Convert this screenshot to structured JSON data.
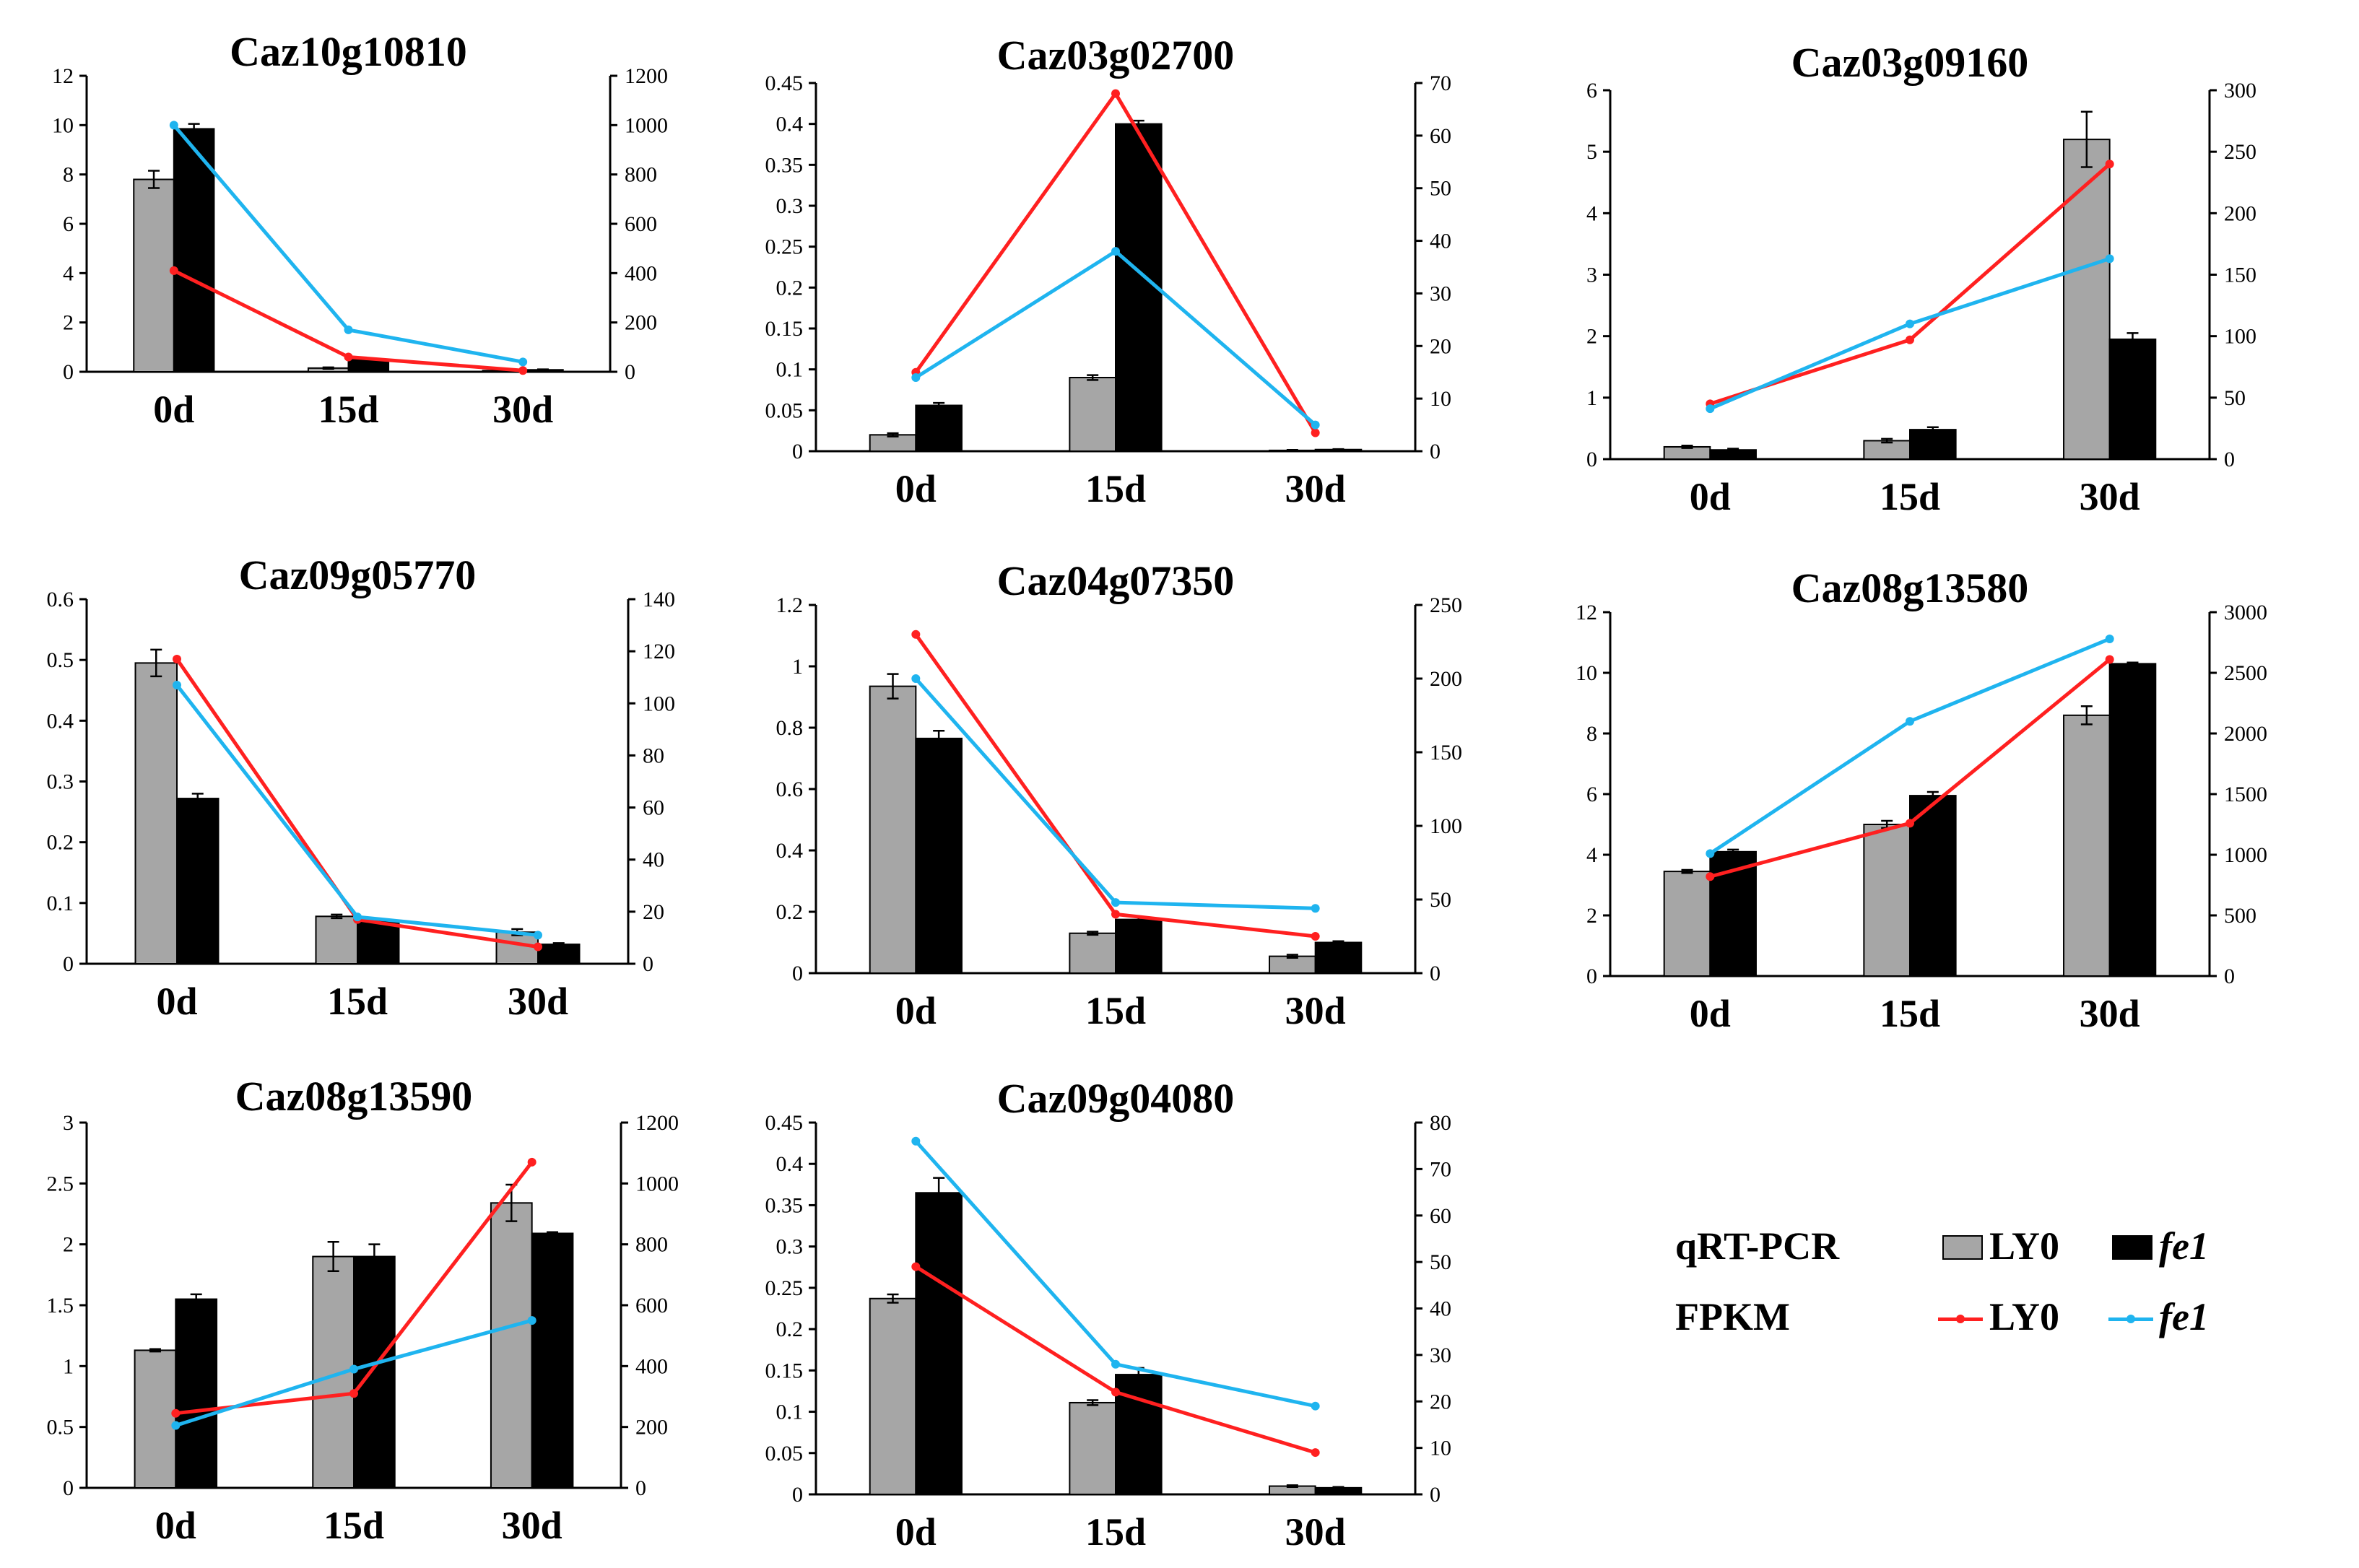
{
  "colors": {
    "ly0_bar": "#a6a6a6",
    "fe1_bar": "#000000",
    "ly0_line": "#ff2020",
    "fe1_line": "#1fb4ef"
  },
  "legend": {
    "qrt_label": "qRT-PCR",
    "fpkm_label": "FPKM",
    "ly0": "LY0",
    "fe1": "fe1"
  },
  "chart_data": [
    {
      "type": "bar",
      "title": "Caz10g10810",
      "categories": [
        "0d",
        "15d",
        "30d"
      ],
      "ylim": [
        0,
        12
      ],
      "yticks": [
        "0",
        "2",
        "4",
        "6",
        "8",
        "10",
        "12"
      ],
      "y2lim": [
        0,
        1200
      ],
      "y2ticks": [
        "0",
        "200",
        "400",
        "600",
        "800",
        "1000",
        "1200"
      ],
      "series": [
        {
          "name": "LY0",
          "kind": "bar",
          "values": [
            7.8,
            0.15,
            0.05
          ],
          "errors": [
            0.35,
            0.03,
            0.02
          ]
        },
        {
          "name": "fe1",
          "kind": "bar",
          "values": [
            9.85,
            0.5,
            0.08
          ],
          "errors": [
            0.2,
            0.05,
            0.02
          ]
        },
        {
          "name": "LY0",
          "kind": "line",
          "axis": "right",
          "values": [
            410,
            60,
            5
          ]
        },
        {
          "name": "fe1",
          "kind": "line",
          "axis": "right",
          "values": [
            1000,
            170,
            40
          ]
        }
      ]
    },
    {
      "type": "bar",
      "title": "Caz03g02700",
      "categories": [
        "0d",
        "15d",
        "30d"
      ],
      "ylim": [
        0,
        0.45
      ],
      "yticks": [
        "0",
        "0.05",
        "0.1",
        "0.15",
        "0.2",
        "0.25",
        "0.3",
        "0.35",
        "0.4",
        "0.45"
      ],
      "y2lim": [
        0,
        70
      ],
      "y2ticks": [
        "0",
        "10",
        "20",
        "30",
        "40",
        "50",
        "60",
        "70"
      ],
      "series": [
        {
          "name": "LY0",
          "kind": "bar",
          "values": [
            0.02,
            0.09,
            0.001
          ],
          "errors": [
            0.002,
            0.003,
            0.0005
          ]
        },
        {
          "name": "fe1",
          "kind": "bar",
          "values": [
            0.056,
            0.4,
            0.002
          ],
          "errors": [
            0.003,
            0.004,
            0.0005
          ]
        },
        {
          "name": "LY0",
          "kind": "line",
          "axis": "right",
          "values": [
            15,
            68,
            3.5
          ]
        },
        {
          "name": "fe1",
          "kind": "line",
          "axis": "right",
          "values": [
            14,
            38,
            5
          ]
        }
      ]
    },
    {
      "type": "bar",
      "title": "Caz03g09160",
      "categories": [
        "0d",
        "15d",
        "30d"
      ],
      "ylim": [
        0,
        6
      ],
      "yticks": [
        "0",
        "1",
        "2",
        "3",
        "4",
        "5",
        "6"
      ],
      "y2lim": [
        0,
        300
      ],
      "y2ticks": [
        "0",
        "50",
        "100",
        "150",
        "200",
        "250",
        "300"
      ],
      "series": [
        {
          "name": "LY0",
          "kind": "bar",
          "values": [
            0.2,
            0.3,
            5.2
          ],
          "errors": [
            0.02,
            0.03,
            0.45
          ]
        },
        {
          "name": "fe1",
          "kind": "bar",
          "values": [
            0.15,
            0.48,
            1.95
          ],
          "errors": [
            0.02,
            0.04,
            0.1
          ]
        },
        {
          "name": "LY0",
          "kind": "line",
          "axis": "right",
          "values": [
            45,
            97,
            240
          ]
        },
        {
          "name": "fe1",
          "kind": "line",
          "axis": "right",
          "values": [
            41,
            110,
            163
          ]
        }
      ]
    },
    {
      "type": "bar",
      "title": "Caz09g05770",
      "categories": [
        "0d",
        "15d",
        "30d"
      ],
      "ylim": [
        0,
        0.6
      ],
      "yticks": [
        "0",
        "0.1",
        "0.2",
        "0.3",
        "0.4",
        "0.5",
        "0.6"
      ],
      "y2lim": [
        0,
        140
      ],
      "y2ticks": [
        "0",
        "20",
        "40",
        "60",
        "80",
        "100",
        "120",
        "140"
      ],
      "series": [
        {
          "name": "LY0",
          "kind": "bar",
          "values": [
            0.495,
            0.078,
            0.052
          ],
          "errors": [
            0.022,
            0.003,
            0.005
          ]
        },
        {
          "name": "fe1",
          "kind": "bar",
          "values": [
            0.272,
            0.07,
            0.032
          ],
          "errors": [
            0.008,
            0.004,
            0.002
          ]
        },
        {
          "name": "LY0",
          "kind": "line",
          "axis": "right",
          "values": [
            117,
            17,
            6.5
          ]
        },
        {
          "name": "fe1",
          "kind": "line",
          "axis": "right",
          "values": [
            107,
            18,
            11
          ]
        }
      ]
    },
    {
      "type": "bar",
      "title": "Caz04g07350",
      "categories": [
        "0d",
        "15d",
        "30d"
      ],
      "ylim": [
        0,
        1.2
      ],
      "yticks": [
        "0",
        "0.2",
        "0.4",
        "0.6",
        "0.8",
        "1",
        "1.2"
      ],
      "y2lim": [
        0,
        250
      ],
      "y2ticks": [
        "0",
        "50",
        "100",
        "150",
        "200",
        "250"
      ],
      "series": [
        {
          "name": "LY0",
          "kind": "bar",
          "values": [
            0.935,
            0.13,
            0.055
          ],
          "errors": [
            0.04,
            0.005,
            0.005
          ]
        },
        {
          "name": "fe1",
          "kind": "bar",
          "values": [
            0.765,
            0.175,
            0.1
          ],
          "errors": [
            0.025,
            0.008,
            0.004
          ]
        },
        {
          "name": "LY0",
          "kind": "line",
          "axis": "right",
          "values": [
            230,
            40,
            25
          ]
        },
        {
          "name": "fe1",
          "kind": "line",
          "axis": "right",
          "values": [
            200,
            48,
            44
          ]
        }
      ]
    },
    {
      "type": "bar",
      "title": "Caz08g13580",
      "categories": [
        "0d",
        "15d",
        "30d"
      ],
      "ylim": [
        0,
        12
      ],
      "yticks": [
        "0",
        "2",
        "4",
        "6",
        "8",
        "10",
        "12"
      ],
      "y2lim": [
        0,
        3000
      ],
      "y2ticks": [
        "0",
        "500",
        "1000",
        "1500",
        "2000",
        "2500",
        "3000"
      ],
      "series": [
        {
          "name": "LY0",
          "kind": "bar",
          "values": [
            3.45,
            5.0,
            8.6
          ],
          "errors": [
            0.05,
            0.12,
            0.3
          ]
        },
        {
          "name": "fe1",
          "kind": "bar",
          "values": [
            4.1,
            5.95,
            10.3
          ],
          "errors": [
            0.07,
            0.12,
            0.04
          ]
        },
        {
          "name": "LY0",
          "kind": "line",
          "axis": "right",
          "values": [
            820,
            1260,
            2610
          ]
        },
        {
          "name": "fe1",
          "kind": "line",
          "axis": "right",
          "values": [
            1010,
            2100,
            2780
          ]
        }
      ]
    },
    {
      "type": "bar",
      "title": "Caz08g13590",
      "categories": [
        "0d",
        "15d",
        "30d"
      ],
      "ylim": [
        0,
        3
      ],
      "yticks": [
        "0",
        "0.5",
        "1",
        "1.5",
        "2",
        "2.5",
        "3"
      ],
      "y2lim": [
        0,
        1200
      ],
      "y2ticks": [
        "0",
        "200",
        "400",
        "600",
        "800",
        "1000",
        "1200"
      ],
      "series": [
        {
          "name": "LY0",
          "kind": "bar",
          "values": [
            1.13,
            1.9,
            2.34
          ],
          "errors": [
            0.01,
            0.12,
            0.15
          ]
        },
        {
          "name": "fe1",
          "kind": "bar",
          "values": [
            1.55,
            1.9,
            2.09
          ],
          "errors": [
            0.04,
            0.1,
            0.01
          ]
        },
        {
          "name": "LY0",
          "kind": "line",
          "axis": "right",
          "values": [
            245,
            310,
            1070
          ]
        },
        {
          "name": "fe1",
          "kind": "line",
          "axis": "right",
          "values": [
            205,
            390,
            550
          ]
        }
      ]
    },
    {
      "type": "bar",
      "title": "Caz09g04080",
      "categories": [
        "0d",
        "15d",
        "30d"
      ],
      "ylim": [
        0,
        0.45
      ],
      "yticks": [
        "0",
        "0.05",
        "0.1",
        "0.15",
        "0.2",
        "0.25",
        "0.3",
        "0.35",
        "0.4",
        "0.45"
      ],
      "y2lim": [
        0,
        80
      ],
      "y2ticks": [
        "0",
        "10",
        "20",
        "30",
        "40",
        "50",
        "60",
        "70",
        "80"
      ],
      "series": [
        {
          "name": "LY0",
          "kind": "bar",
          "values": [
            0.237,
            0.111,
            0.01
          ],
          "errors": [
            0.005,
            0.003,
            0.001
          ]
        },
        {
          "name": "fe1",
          "kind": "bar",
          "values": [
            0.365,
            0.145,
            0.008
          ],
          "errors": [
            0.018,
            0.008,
            0.001
          ]
        },
        {
          "name": "LY0",
          "kind": "line",
          "axis": "right",
          "values": [
            49,
            22,
            9
          ]
        },
        {
          "name": "fe1",
          "kind": "line",
          "axis": "right",
          "values": [
            76,
            28,
            19
          ]
        }
      ]
    }
  ]
}
